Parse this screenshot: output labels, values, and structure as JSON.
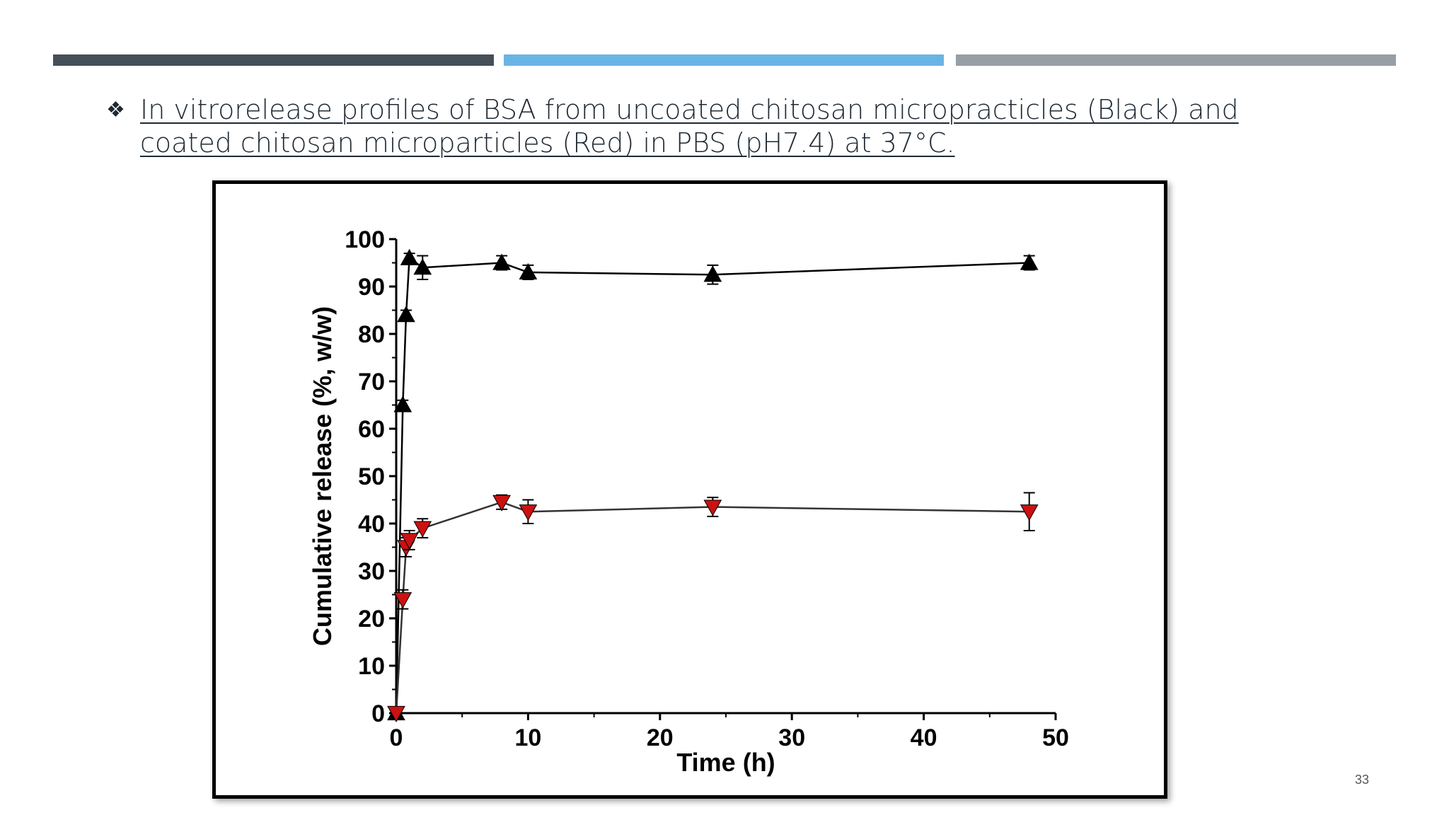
{
  "slide": {
    "bullet": "❖",
    "caption": "In vitrorelease profiles of BSA from uncoated chitosan micropracticles (Black) and coated chitosan microparticles (Red) in PBS (pH7.4) at 37°C.",
    "page_number": "33",
    "colors": {
      "bar_dark": "#444f58",
      "bar_blue": "#6ab4e5",
      "bar_gray": "#979ea5"
    }
  },
  "chart_data": {
    "type": "line",
    "title": "",
    "xlabel": "Time (h)",
    "ylabel": "Cumulative release (%, w/w)",
    "xlim": [
      0,
      50
    ],
    "ylim": [
      0,
      100
    ],
    "x_ticks": [
      0,
      10,
      20,
      30,
      40,
      50
    ],
    "y_ticks": [
      0,
      10,
      20,
      30,
      40,
      50,
      60,
      70,
      80,
      90,
      100
    ],
    "grid": false,
    "series": [
      {
        "color": "#000000",
        "marker": "triangle-up",
        "x": [
          0,
          0.5,
          0.75,
          1,
          2,
          8,
          10,
          24,
          48
        ],
        "y": [
          0,
          65,
          84,
          96,
          94,
          95,
          93,
          92.5,
          95
        ],
        "error": [
          0,
          1,
          1,
          1,
          2.5,
          1.5,
          1.5,
          2,
          1.5
        ]
      },
      {
        "color": "#cc1111",
        "marker": "triangle-down",
        "x": [
          0,
          0.5,
          0.75,
          1,
          2,
          8,
          10,
          24,
          48
        ],
        "y": [
          0,
          24,
          35,
          36.5,
          39,
          44.5,
          42.5,
          43.5,
          42.5
        ],
        "error": [
          0,
          2,
          2,
          2,
          2,
          1.5,
          2.5,
          2,
          4
        ]
      }
    ]
  }
}
